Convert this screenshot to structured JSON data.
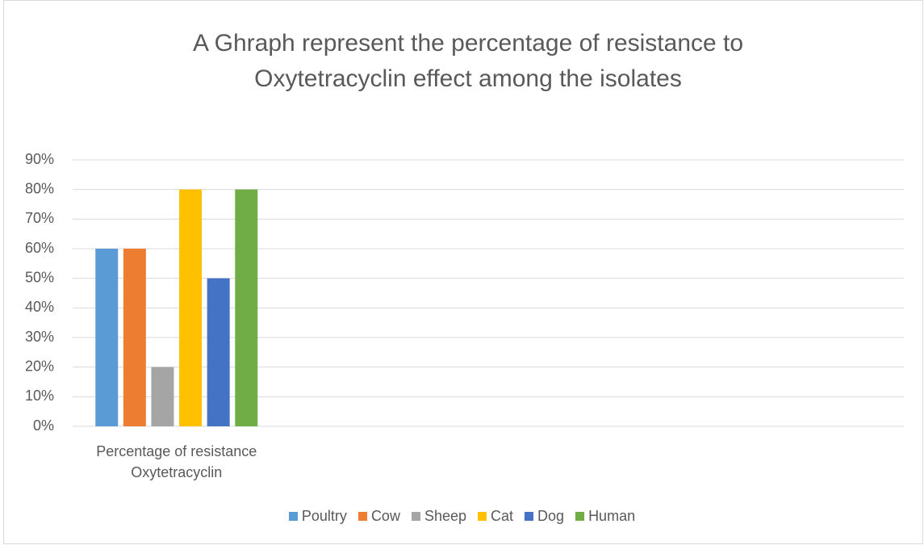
{
  "chart_data": {
    "type": "bar",
    "title": "A Ghraph represent the percentage of resistance to Oxytetracyclin effect among the isolates",
    "categories": [
      "Percentage of resistance Oxytetracyclin",
      null,
      null,
      null
    ],
    "series": [
      {
        "name": "Poultry",
        "color": "#5b9bd5",
        "values": [
          60,
          null,
          null,
          null
        ]
      },
      {
        "name": "Cow",
        "color": "#ed7d31",
        "values": [
          60,
          null,
          null,
          null
        ]
      },
      {
        "name": "Sheep",
        "color": "#a5a5a5",
        "values": [
          20,
          null,
          null,
          null
        ]
      },
      {
        "name": "Cat",
        "color": "#ffc000",
        "values": [
          80,
          null,
          null,
          null
        ]
      },
      {
        "name": "Dog",
        "color": "#4472c4",
        "values": [
          50,
          null,
          null,
          null
        ]
      },
      {
        "name": "Human",
        "color": "#70ad47",
        "values": [
          80,
          null,
          null,
          null
        ]
      }
    ],
    "ylim": [
      0,
      90
    ],
    "yticks": [
      {
        "value": 0,
        "label": "0%"
      },
      {
        "value": 10,
        "label": "10%"
      },
      {
        "value": 20,
        "label": "20%"
      },
      {
        "value": 30,
        "label": "30%"
      },
      {
        "value": 40,
        "label": "40%"
      },
      {
        "value": 50,
        "label": "50%"
      },
      {
        "value": 60,
        "label": "60%"
      },
      {
        "value": 70,
        "label": "70%"
      },
      {
        "value": 80,
        "label": "80%"
      },
      {
        "value": 90,
        "label": "90%"
      }
    ],
    "grid": true,
    "legend": "bottom"
  }
}
